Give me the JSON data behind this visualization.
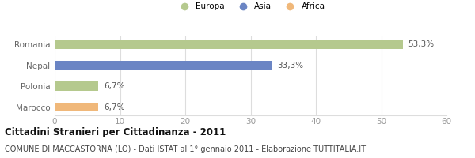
{
  "categories": [
    "Romania",
    "Nepal",
    "Polonia",
    "Marocco"
  ],
  "values": [
    53.3,
    33.3,
    6.7,
    6.7
  ],
  "colors": [
    "#b5c98e",
    "#6b85c4",
    "#b5c98e",
    "#f0b87a"
  ],
  "continent": [
    "Europa",
    "Asia",
    "Europa",
    "Africa"
  ],
  "xlim": [
    0,
    60
  ],
  "xticks": [
    0,
    10,
    20,
    30,
    40,
    50,
    60
  ],
  "legend_labels": [
    "Europa",
    "Asia",
    "Africa"
  ],
  "legend_colors": [
    "#b5c98e",
    "#6b85c4",
    "#f0b87a"
  ],
  "title": "Cittadini Stranieri per Cittadinanza - 2011",
  "subtitle": "COMUNE DI MACCASTORNA (LO) - Dati ISTAT al 1° gennaio 2011 - Elaborazione TUTTITALIA.IT",
  "title_fontsize": 8.5,
  "subtitle_fontsize": 7.0,
  "label_fontsize": 7.5,
  "tick_fontsize": 7.5,
  "bar_height": 0.45,
  "bg_color": "#ffffff",
  "grid_color": "#dddddd",
  "bar_label_color": "#555555",
  "ytick_color": "#666666",
  "xtick_color": "#999999"
}
